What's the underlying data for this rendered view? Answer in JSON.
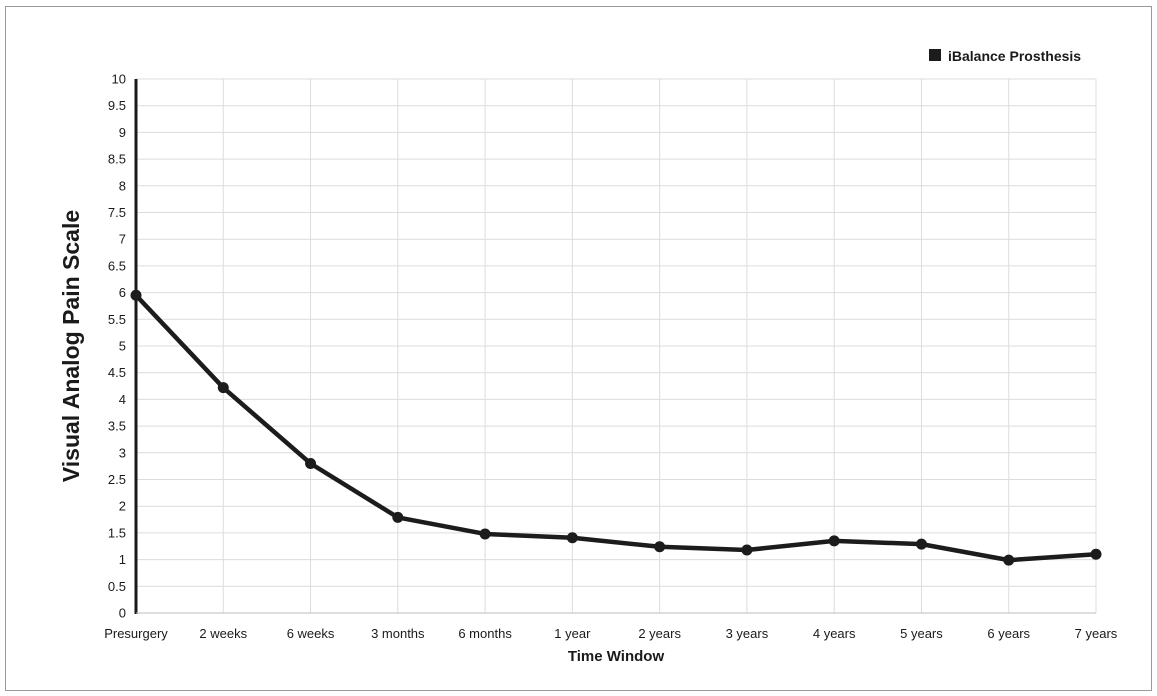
{
  "chart_data": {
    "type": "line",
    "title": "",
    "xlabel": "Time Window",
    "ylabel": "Visual Analog Pain Scale",
    "categories": [
      "Presurgery",
      "2 weeks",
      "6 weeks",
      "3 months",
      "6 months",
      "1 year",
      "2 years",
      "3 years",
      "4 years",
      "5 years",
      "6 years",
      "7 years"
    ],
    "y_ticks": [
      "0",
      "0.5",
      "1",
      "1.5",
      "2",
      "2.5",
      "3",
      "3.5",
      "4",
      "4.5",
      "5",
      "5.5",
      "6",
      "6.5",
      "7",
      "7.5",
      "8",
      "8.5",
      "9",
      "9.5",
      "10"
    ],
    "ylim": [
      0,
      10
    ],
    "grid": true,
    "legend_position": "top-right",
    "series": [
      {
        "name": "iBalance Prosthesis",
        "color": "#1c1c1c",
        "values": [
          5.95,
          4.22,
          2.8,
          1.79,
          1.48,
          1.41,
          1.24,
          1.18,
          1.35,
          1.29,
          0.99,
          1.1
        ]
      }
    ]
  }
}
